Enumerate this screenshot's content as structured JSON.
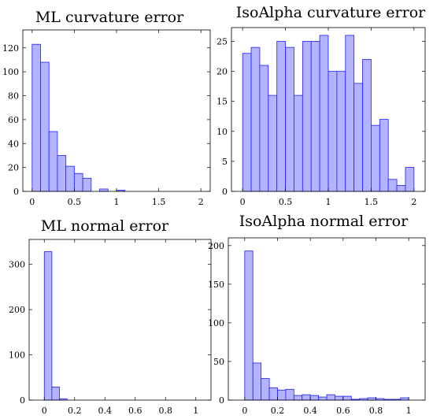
{
  "chart_data": [
    {
      "type": "bar",
      "title": "ML curvature error",
      "xlabel": "",
      "ylabel": "",
      "xlim": [
        -0.11,
        2.11
      ],
      "ylim": [
        0,
        135
      ],
      "xticks": [
        0,
        0.5,
        1,
        1.5,
        2
      ],
      "xtick_labels": [
        "0",
        "0.5",
        "1",
        "1.5",
        "2"
      ],
      "yticks": [
        0,
        20,
        40,
        60,
        80,
        100,
        120
      ],
      "ytick_labels": [
        "0",
        "20",
        "40",
        "60",
        "80",
        "100",
        "120"
      ],
      "bin_width": 0.1,
      "bin_starts": [
        0,
        0.1,
        0.2,
        0.3,
        0.4,
        0.5,
        0.6,
        0.7,
        0.8,
        0.9,
        1.0,
        1.1,
        1.2,
        1.3,
        1.4,
        1.5,
        1.6,
        1.7,
        1.8,
        1.9
      ],
      "values": [
        123,
        108,
        50,
        30,
        21,
        15,
        11,
        0,
        2,
        0,
        1,
        0,
        0,
        0,
        0,
        0,
        0,
        0,
        0,
        0
      ],
      "grid": false,
      "bar_fill": "#b3b3ff",
      "bar_edge": "#2020ff"
    },
    {
      "type": "bar",
      "title": "IsoAlpha curvature error",
      "xlabel": "",
      "ylabel": "",
      "xlim": [
        -0.13,
        2.13
      ],
      "ylim": [
        0,
        27.3
      ],
      "xticks": [
        0,
        0.5,
        1,
        1.5,
        2
      ],
      "xtick_labels": [
        "0",
        "0.5",
        "1",
        "1.5",
        "2"
      ],
      "yticks": [
        0,
        5,
        10,
        15,
        20,
        25
      ],
      "ytick_labels": [
        "0",
        "5",
        "10",
        "15",
        "20",
        "25"
      ],
      "bin_width": 0.1,
      "bin_starts": [
        0,
        0.1,
        0.2,
        0.3,
        0.4,
        0.5,
        0.6,
        0.7,
        0.8,
        0.9,
        1.0,
        1.1,
        1.2,
        1.3,
        1.4,
        1.5,
        1.6,
        1.7,
        1.8,
        1.9
      ],
      "values": [
        23,
        24,
        21,
        16,
        25,
        24,
        16,
        25,
        25,
        26,
        20,
        20,
        26,
        18,
        22,
        11,
        12,
        2,
        1,
        4
      ],
      "grid": false,
      "bar_fill": "#b3b3ff",
      "bar_edge": "#2020ff"
    },
    {
      "type": "bar",
      "title": "ML normal error",
      "xlabel": "",
      "ylabel": "",
      "xlim": [
        -0.1,
        1.1
      ],
      "ylim": [
        0,
        355
      ],
      "xticks": [
        0,
        0.2,
        0.4,
        0.6,
        0.8,
        1
      ],
      "xtick_labels": [
        "0",
        "0.2",
        "0.4",
        "0.6",
        "0.8",
        "1"
      ],
      "yticks": [
        0,
        100,
        200,
        300
      ],
      "ytick_labels": [
        "0",
        "100",
        "200",
        "300"
      ],
      "bin_width": 0.05,
      "bin_starts": [
        0,
        0.05,
        0.1
      ],
      "values": [
        328,
        29,
        3
      ],
      "grid": false,
      "bar_fill": "#b3b3ff",
      "bar_edge": "#2020ff"
    },
    {
      "type": "bar",
      "title": "IsoAlpha normal error",
      "xlabel": "",
      "ylabel": "",
      "xlim": [
        -0.1,
        1.1
      ],
      "ylim": [
        0,
        210
      ],
      "xticks": [
        0,
        0.2,
        0.4,
        0.6,
        0.8,
        1
      ],
      "xtick_labels": [
        "0",
        "0.2",
        "0.4",
        "0.6",
        "0.8",
        "1"
      ],
      "yticks": [
        0,
        50,
        100,
        150,
        200
      ],
      "ytick_labels": [
        "0",
        "50",
        "100",
        "150",
        "200"
      ],
      "bin_width": 0.05,
      "bin_starts": [
        0,
        0.05,
        0.1,
        0.15,
        0.2,
        0.25,
        0.3,
        0.35,
        0.4,
        0.45,
        0.5,
        0.55,
        0.6,
        0.65,
        0.7,
        0.75,
        0.8,
        0.85,
        0.9,
        0.95
      ],
      "values": [
        193,
        48,
        28,
        16,
        13,
        14,
        6,
        7,
        6,
        4,
        7,
        5,
        5,
        1,
        2,
        3,
        2,
        1,
        1,
        3
      ],
      "grid": false,
      "bar_fill": "#b3b3ff",
      "bar_edge": "#2020ff"
    }
  ]
}
